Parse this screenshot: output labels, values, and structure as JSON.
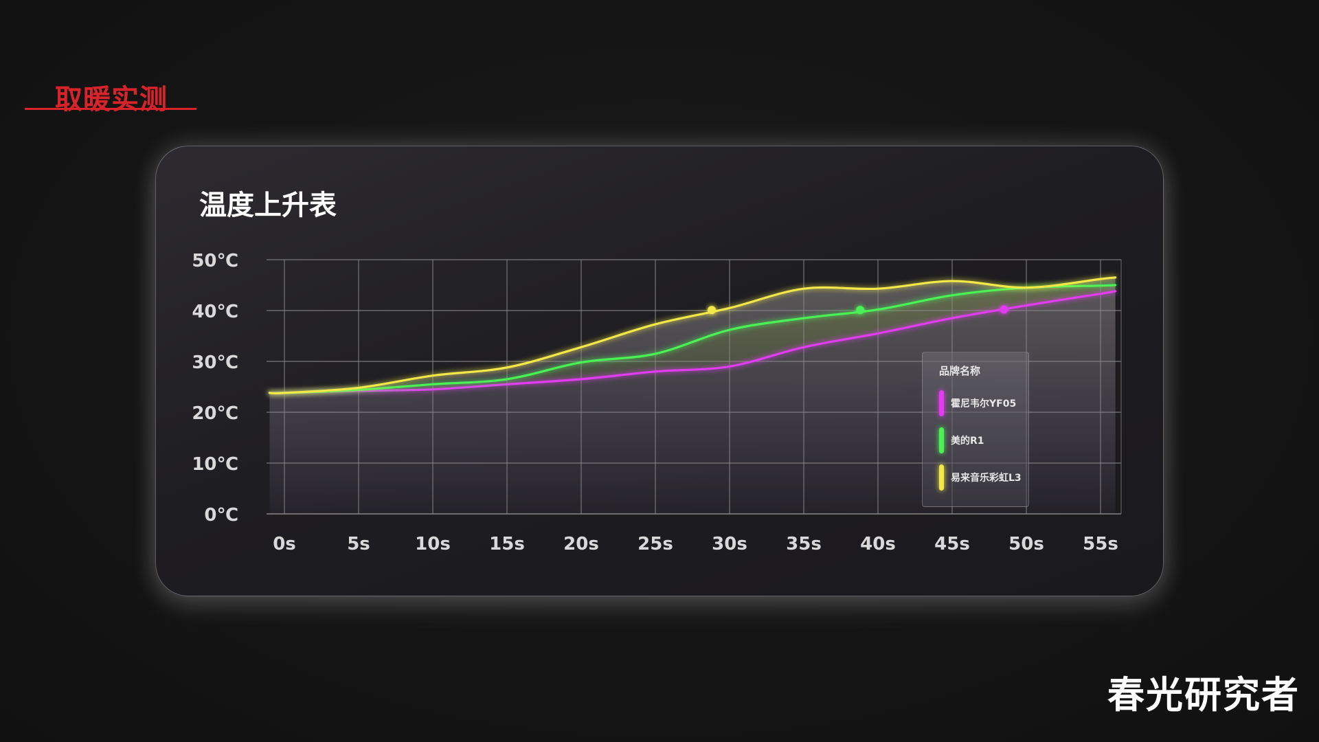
{
  "section": {
    "title": "取暖实测"
  },
  "watermark": "春光研究者",
  "chart_data": {
    "type": "line",
    "title": "温度上升表",
    "xlabel": "",
    "ylabel": "",
    "categories": [
      "0s",
      "5s",
      "10s",
      "15s",
      "20s",
      "25s",
      "30s",
      "35s",
      "40s",
      "45s",
      "50s",
      "55s"
    ],
    "x": [
      0,
      5,
      10,
      15,
      20,
      25,
      30,
      35,
      40,
      45,
      50,
      55
    ],
    "y_ticks": [
      "0℃",
      "10℃",
      "20℃",
      "30℃",
      "40℃",
      "50℃"
    ],
    "ylim": [
      0,
      50
    ],
    "xlim": [
      -1.3,
      56.2
    ],
    "grid": true,
    "legend_position": "right",
    "legend_title": "品牌名称",
    "series": [
      {
        "name": "霍尼韦尔YF05",
        "color": "#e13cf0",
        "x": [
          -1,
          0,
          5,
          10,
          15,
          20,
          25,
          30,
          35,
          40,
          45,
          50,
          55,
          56
        ],
        "values": [
          23.8,
          23.8,
          24.2,
          24.5,
          25.5,
          26.5,
          28.0,
          29.0,
          32.8,
          35.5,
          38.5,
          41.0,
          43.3,
          43.8
        ],
        "marker": {
          "x": 48.5,
          "y": 40.2
        }
      },
      {
        "name": "美的R1",
        "color": "#4cf255",
        "x": [
          -1,
          0,
          5,
          10,
          15,
          20,
          25,
          30,
          35,
          40,
          45,
          50,
          55,
          56
        ],
        "values": [
          23.8,
          23.8,
          24.4,
          25.5,
          26.5,
          29.8,
          31.5,
          36.2,
          38.5,
          40.2,
          43.0,
          44.5,
          44.9,
          45.0
        ],
        "marker": {
          "x": 38.8,
          "y": 40.1
        }
      },
      {
        "name": "易来音乐彩虹L3",
        "color": "#f2e84a",
        "x": [
          -1,
          0,
          5,
          10,
          15,
          20,
          25,
          30,
          35,
          40,
          45,
          50,
          55,
          56
        ],
        "values": [
          23.8,
          23.8,
          24.8,
          27.2,
          28.8,
          32.8,
          37.3,
          40.5,
          44.3,
          44.3,
          45.8,
          44.5,
          46.2,
          46.5
        ],
        "marker": {
          "x": 28.8,
          "y": 40.1
        }
      }
    ]
  }
}
